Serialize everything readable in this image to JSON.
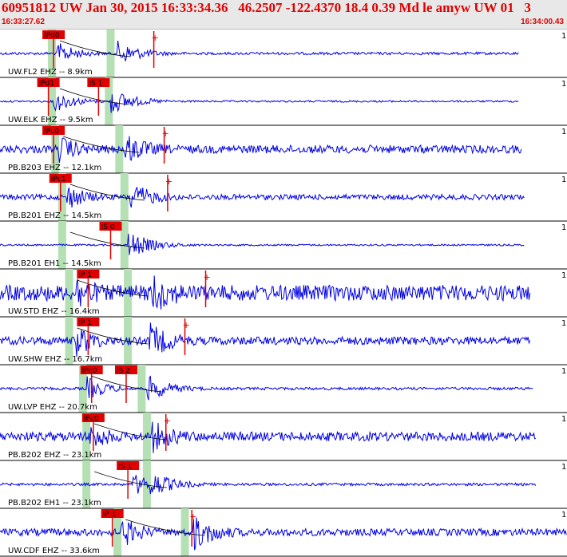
{
  "header": {
    "title": "60951812 UW Jan 30, 2015 16:33:34.36   46.2507 -122.4370 18.4 0.39 Md le amyw UW 01   3",
    "start_time": "16:33:27.62",
    "end_time": "16:34:00.43"
  },
  "colors": {
    "trace": "#0000e6",
    "pick": "#e00000",
    "theory_band": "#b4e0b4",
    "header_text": "#e00000",
    "header_bg": "#e8e8e8"
  },
  "traces": [
    {
      "label": "UW.FL2 EHZ -- 8.9km",
      "scale": "1",
      "picks": [
        {
          "name": "IPd0",
          "t": 3.1
        },
        {
          "name": "",
          "t": 8.9
        }
      ],
      "bands": [
        3.0,
        6.4
      ],
      "onset": 3.3,
      "s_arrival": 6.8,
      "amp": 0.5,
      "noise": 0.06,
      "end": 0.915
    },
    {
      "label": "UW.ELK EHZ -- 9.5km",
      "scale": "1",
      "picks": [
        {
          "name": "IPd1",
          "t": 2.8
        },
        {
          "name": "IS 1",
          "t": 5.7
        }
      ],
      "bands": [
        3.0,
        6.3
      ],
      "onset": 3.1,
      "s_arrival": 6.4,
      "amp": 0.55,
      "noise": 0.04,
      "end": 0.915
    },
    {
      "label": "PB.B203 EHZ -- 12.1km",
      "scale": "1",
      "picks": [
        {
          "name": "IPc0",
          "t": 3.1
        },
        {
          "name": "",
          "t": 9.5
        }
      ],
      "bands": [
        3.2,
        6.9
      ],
      "onset": 3.4,
      "s_arrival": 7.2,
      "amp": 0.6,
      "noise": 0.18,
      "end": 0.92
    },
    {
      "label": "PB.B201 EHZ -- 14.5km",
      "scale": "1",
      "picks": [
        {
          "name": "IPc1",
          "t": 3.5
        },
        {
          "name": "",
          "t": 9.7
        }
      ],
      "bands": [
        3.6,
        7.2
      ],
      "onset": 3.8,
      "s_arrival": 7.5,
      "amp": 0.6,
      "noise": 0.12,
      "end": 0.925
    },
    {
      "label": "PB.B201 EH1 -- 14.5km",
      "scale": "1",
      "picks": [
        {
          "name": "IS 0",
          "t": 6.4
        }
      ],
      "bands": [
        3.6,
        7.2
      ],
      "onset": 7.4,
      "s_arrival": 7.5,
      "amp": 0.55,
      "noise": 0.04,
      "end": 0.925
    },
    {
      "label": "UW.STD EHZ -- 16.4km",
      "scale": "1",
      "picks": [
        {
          "name": "IP 1",
          "t": 5.1
        },
        {
          "name": "",
          "t": 11.9
        }
      ],
      "bands": [
        4.0,
        7.4
      ],
      "onset": 4.4,
      "s_arrival": 8.8,
      "amp": 0.75,
      "noise": 0.35,
      "end": 0.935
    },
    {
      "label": "UW.SHW EHZ -- 16.7km",
      "scale": "1",
      "picks": [
        {
          "name": "IP 1",
          "t": 5.1
        },
        {
          "name": "",
          "t": 10.7
        }
      ],
      "bands": [
        4.0,
        7.4
      ],
      "onset": 4.4,
      "s_arrival": 8.6,
      "amp": 0.7,
      "noise": 0.18,
      "end": 0.935
    },
    {
      "label": "UW.LVP EHZ -- 20.7km",
      "scale": "1",
      "picks": [
        {
          "name": "IPc0",
          "t": 5.3
        },
        {
          "name": "IS 2",
          "t": 7.3
        }
      ],
      "bands": [
        4.8,
        8.2
      ],
      "onset": 5.0,
      "s_arrival": 8.5,
      "amp": 0.55,
      "noise": 0.06,
      "end": 0.94
    },
    {
      "label": "PB.B202 EHZ -- 23.1km",
      "scale": "1",
      "picks": [
        {
          "name": "IPc0",
          "t": 5.4
        },
        {
          "name": "",
          "t": 9.6
        }
      ],
      "bands": [
        5.0,
        8.5
      ],
      "onset": 5.2,
      "s_arrival": 8.8,
      "amp": 0.6,
      "noise": 0.2,
      "end": 0.945
    },
    {
      "label": "PB.B202 EH1 -- 23.1km",
      "scale": "1",
      "picks": [
        {
          "name": "IS 1",
          "t": 7.4
        }
      ],
      "bands": [
        5.0,
        8.5
      ],
      "onset": 7.6,
      "s_arrival": 8.7,
      "amp": 0.55,
      "noise": 0.06,
      "end": 0.945
    },
    {
      "label": "UW.CDF EHZ -- 33.6km",
      "scale": "1",
      "picks": [
        {
          "name": "IP 1",
          "t": 6.5
        },
        {
          "name": "",
          "t": 11.1
        }
      ],
      "bands": [
        6.8,
        10.7
      ],
      "onset": 7.0,
      "s_arrival": 11.2,
      "amp": 0.7,
      "noise": 0.16,
      "end": 1.0
    }
  ]
}
